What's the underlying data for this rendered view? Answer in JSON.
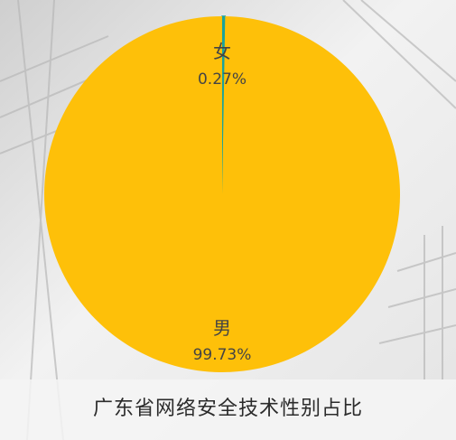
{
  "chart_data": {
    "type": "pie",
    "title": "广东省网络安全技术性别占比",
    "slices": [
      {
        "label": "女",
        "value": 0.27,
        "value_label": "0.27%",
        "color": "#1aa39c"
      },
      {
        "label": "男",
        "value": 99.73,
        "value_label": "99.73%",
        "color": "#fec009"
      }
    ],
    "legend": "none"
  }
}
